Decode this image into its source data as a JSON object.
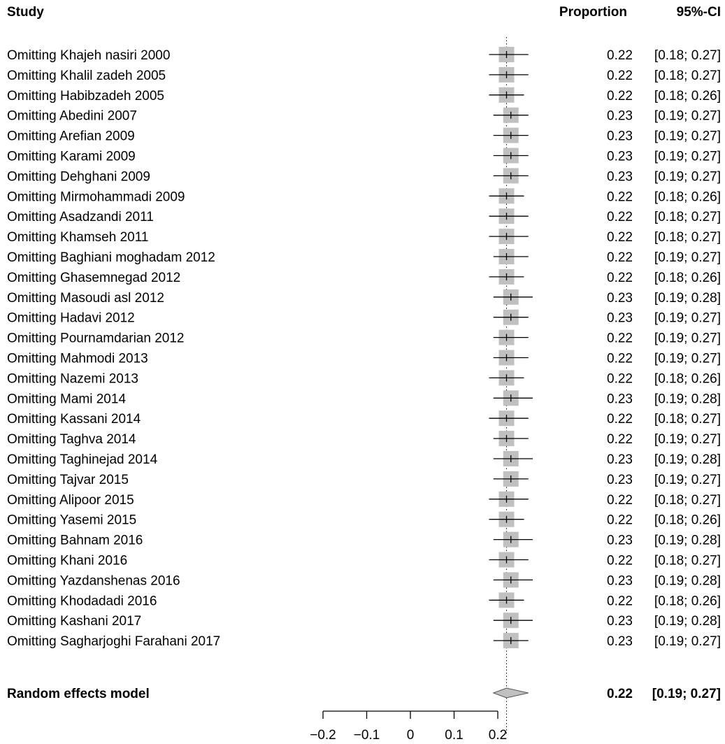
{
  "chart_data": {
    "type": "forest",
    "headers": {
      "study": "Study",
      "proportion": "Proportion",
      "ci": "95%-CI"
    },
    "studies": [
      {
        "label": "Omitting Khajeh nasiri 2000",
        "est": 0.22,
        "lo": 0.18,
        "hi": 0.27,
        "prop_text": "0.22",
        "ci_text": "[0.18; 0.27]"
      },
      {
        "label": "Omitting Khalil zadeh 2005",
        "est": 0.22,
        "lo": 0.18,
        "hi": 0.27,
        "prop_text": "0.22",
        "ci_text": "[0.18; 0.27]"
      },
      {
        "label": "Omitting Habibzadeh 2005",
        "est": 0.22,
        "lo": 0.18,
        "hi": 0.26,
        "prop_text": "0.22",
        "ci_text": "[0.18; 0.26]"
      },
      {
        "label": "Omitting Abedini 2007",
        "est": 0.23,
        "lo": 0.19,
        "hi": 0.27,
        "prop_text": "0.23",
        "ci_text": "[0.19; 0.27]"
      },
      {
        "label": "Omitting Arefian 2009",
        "est": 0.23,
        "lo": 0.19,
        "hi": 0.27,
        "prop_text": "0.23",
        "ci_text": "[0.19; 0.27]"
      },
      {
        "label": "Omitting Karami 2009",
        "est": 0.23,
        "lo": 0.19,
        "hi": 0.27,
        "prop_text": "0.23",
        "ci_text": "[0.19; 0.27]"
      },
      {
        "label": "Omitting Dehghani 2009",
        "est": 0.23,
        "lo": 0.19,
        "hi": 0.27,
        "prop_text": "0.23",
        "ci_text": "[0.19; 0.27]"
      },
      {
        "label": "Omitting Mirmohammadi 2009",
        "est": 0.22,
        "lo": 0.18,
        "hi": 0.26,
        "prop_text": "0.22",
        "ci_text": "[0.18; 0.26]"
      },
      {
        "label": "Omitting Asadzandi 2011",
        "est": 0.22,
        "lo": 0.18,
        "hi": 0.27,
        "prop_text": "0.22",
        "ci_text": "[0.18; 0.27]"
      },
      {
        "label": "Omitting Khamseh 2011",
        "est": 0.22,
        "lo": 0.18,
        "hi": 0.27,
        "prop_text": "0.22",
        "ci_text": "[0.18; 0.27]"
      },
      {
        "label": "Omitting Baghiani moghadam 2012",
        "est": 0.22,
        "lo": 0.19,
        "hi": 0.27,
        "prop_text": "0.22",
        "ci_text": "[0.19; 0.27]"
      },
      {
        "label": "Omitting Ghasemnegad 2012",
        "est": 0.22,
        "lo": 0.18,
        "hi": 0.26,
        "prop_text": "0.22",
        "ci_text": "[0.18; 0.26]"
      },
      {
        "label": "Omitting Masoudi asl 2012",
        "est": 0.23,
        "lo": 0.19,
        "hi": 0.28,
        "prop_text": "0.23",
        "ci_text": "[0.19; 0.28]"
      },
      {
        "label": "Omitting Hadavi 2012",
        "est": 0.23,
        "lo": 0.19,
        "hi": 0.27,
        "prop_text": "0.23",
        "ci_text": "[0.19; 0.27]"
      },
      {
        "label": "Omitting Pournamdarian 2012",
        "est": 0.22,
        "lo": 0.19,
        "hi": 0.27,
        "prop_text": "0.22",
        "ci_text": "[0.19; 0.27]"
      },
      {
        "label": "Omitting Mahmodi 2013",
        "est": 0.22,
        "lo": 0.19,
        "hi": 0.27,
        "prop_text": "0.22",
        "ci_text": "[0.19; 0.27]"
      },
      {
        "label": "Omitting Nazemi 2013",
        "est": 0.22,
        "lo": 0.18,
        "hi": 0.26,
        "prop_text": "0.22",
        "ci_text": "[0.18; 0.26]"
      },
      {
        "label": "Omitting Mami 2014",
        "est": 0.23,
        "lo": 0.19,
        "hi": 0.28,
        "prop_text": "0.23",
        "ci_text": "[0.19; 0.28]"
      },
      {
        "label": "Omitting Kassani 2014",
        "est": 0.22,
        "lo": 0.18,
        "hi": 0.27,
        "prop_text": "0.22",
        "ci_text": "[0.18; 0.27]"
      },
      {
        "label": "Omitting Taghva 2014",
        "est": 0.22,
        "lo": 0.19,
        "hi": 0.27,
        "prop_text": "0.22",
        "ci_text": "[0.19; 0.27]"
      },
      {
        "label": "Omitting Taghinejad 2014",
        "est": 0.23,
        "lo": 0.19,
        "hi": 0.28,
        "prop_text": "0.23",
        "ci_text": "[0.19; 0.28]"
      },
      {
        "label": "Omitting Tajvar 2015",
        "est": 0.23,
        "lo": 0.19,
        "hi": 0.27,
        "prop_text": "0.23",
        "ci_text": "[0.19; 0.27]"
      },
      {
        "label": "Omitting Alipoor 2015",
        "est": 0.22,
        "lo": 0.18,
        "hi": 0.27,
        "prop_text": "0.22",
        "ci_text": "[0.18; 0.27]"
      },
      {
        "label": "Omitting Yasemi 2015",
        "est": 0.22,
        "lo": 0.18,
        "hi": 0.26,
        "prop_text": "0.22",
        "ci_text": "[0.18; 0.26]"
      },
      {
        "label": "Omitting Bahnam 2016",
        "est": 0.23,
        "lo": 0.19,
        "hi": 0.28,
        "prop_text": "0.23",
        "ci_text": "[0.19; 0.28]"
      },
      {
        "label": "Omitting Khani 2016",
        "est": 0.22,
        "lo": 0.18,
        "hi": 0.27,
        "prop_text": "0.22",
        "ci_text": "[0.18; 0.27]"
      },
      {
        "label": "Omitting Yazdanshenas 2016",
        "est": 0.23,
        "lo": 0.19,
        "hi": 0.28,
        "prop_text": "0.23",
        "ci_text": "[0.19; 0.28]"
      },
      {
        "label": "Omitting Khodadadi 2016",
        "est": 0.22,
        "lo": 0.18,
        "hi": 0.26,
        "prop_text": "0.22",
        "ci_text": "[0.18; 0.26]"
      },
      {
        "label": "Omitting Kashani  2017",
        "est": 0.23,
        "lo": 0.19,
        "hi": 0.28,
        "prop_text": "0.23",
        "ci_text": "[0.19; 0.28]"
      },
      {
        "label": "Omitting Sagharjoghi Farahani 2017",
        "est": 0.23,
        "lo": 0.19,
        "hi": 0.27,
        "prop_text": "0.23",
        "ci_text": "[0.19; 0.27]"
      }
    ],
    "summary": {
      "label": "Random effects model",
      "est": 0.22,
      "lo": 0.19,
      "hi": 0.27,
      "prop_text": "0.22",
      "ci_text": "[0.19; 0.27]"
    },
    "xaxis": {
      "ticks": [
        -0.2,
        -0.1,
        0,
        0.1,
        0.2
      ],
      "tick_labels": [
        "−0.2",
        "−0.1",
        "0",
        "0.1",
        "0.2"
      ],
      "xlim": [
        -0.2,
        0.2
      ]
    },
    "reference_line": {
      "value": 0.22,
      "style": "dotted"
    },
    "colors": {
      "box": "#c0c0c0",
      "diamond": "#c0c0c0",
      "line": "#000000"
    }
  }
}
